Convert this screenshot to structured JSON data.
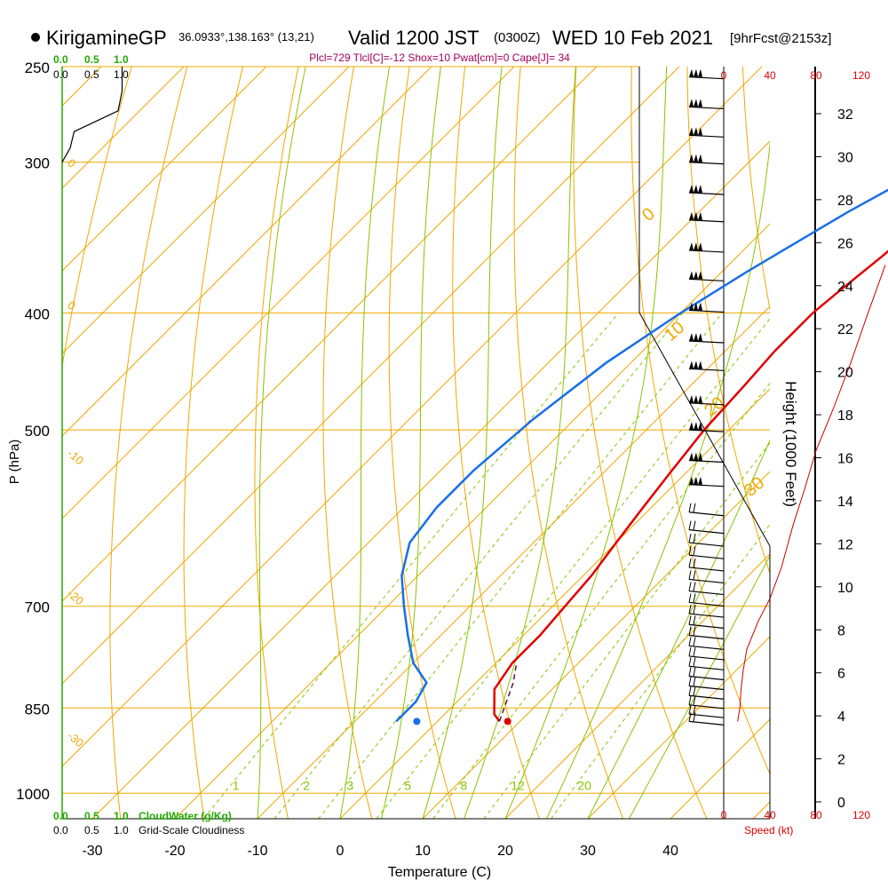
{
  "header": {
    "station": "KirigamineGP",
    "coords": "36.0933°,138.163° (13,21)",
    "valid": "Valid 1200 JST",
    "utc": "(0300Z)",
    "date": "WED 10 Feb 2021",
    "forecast": "[9hrFcst@2153z]",
    "indices": "Plcl=729 Tlcl[C]=-12 Shox=10 Pwat[cm]=0 Cape[J]= 34"
  },
  "colors": {
    "temperature": "#e00000",
    "dewpoint": "#1a6fe8",
    "isotherm": "#f0a800",
    "dry_adiabat": "#f0a800",
    "moist_adiabat": "#88c400",
    "mixing_ratio": "#88c400",
    "cloud": "#000000",
    "speed": "#cc0000",
    "cloudwater_label": "#22aa00"
  },
  "chart_data": {
    "type": "line",
    "title": "",
    "xlabel": "Temperature (C)",
    "ylabel": "P (hPa)",
    "y2label": "Height (1000 Feet)",
    "skewed": true,
    "pressure_axis": {
      "scale": "log",
      "range": [
        250,
        1050
      ],
      "ticks": [
        "250",
        "300",
        "400",
        "500",
        "700",
        "850",
        "1000"
      ]
    },
    "temperature_ticks": [
      "-30",
      "-20",
      "-10",
      "0",
      "10",
      "20",
      "30",
      "40"
    ],
    "height_ticks": [
      "0",
      "2",
      "4",
      "6",
      "8",
      "10",
      "12",
      "14",
      "16",
      "18",
      "20",
      "22",
      "24",
      "26",
      "28",
      "30",
      "32"
    ],
    "isotherm_labels": [
      "0",
      "10",
      "20",
      "30"
    ],
    "isotherm_left_labels": [
      "0",
      "0",
      "-10",
      "-20",
      "-30"
    ],
    "mixing_ratio_labels": [
      "1",
      "2",
      "3",
      "5",
      "8",
      "12",
      "20"
    ],
    "cloudwater_axis": {
      "label": "CloudWater (g/Kg)",
      "ticks": [
        "0.0",
        "0.5",
        "1.0"
      ]
    },
    "cloudiness_axis": {
      "label": "Grid-Scale Cloudiness",
      "ticks": [
        "0.0",
        "0.5",
        "1.0"
      ]
    },
    "speed_axis": {
      "label": "Speed (kt)",
      "ticks": [
        "0",
        "40",
        "80",
        "120"
      ]
    },
    "series": [
      {
        "key": "temperature",
        "points": [
          [
            -4.5,
            260
          ],
          [
            -2.5,
            285
          ],
          [
            -1.5,
            300
          ],
          [
            -1.5,
            330
          ],
          [
            -2.5,
            360
          ],
          [
            -3.5,
            385
          ],
          [
            -4,
            400
          ],
          [
            -4,
            430
          ],
          [
            -3.5,
            460
          ],
          [
            -3,
            500
          ],
          [
            -2,
            540
          ],
          [
            -1,
            580
          ],
          [
            0,
            620
          ],
          [
            1,
            660
          ],
          [
            1.5,
            700
          ],
          [
            2,
            740
          ],
          [
            2,
            780
          ],
          [
            3,
            820
          ],
          [
            6,
            860
          ],
          [
            7.5,
            872
          ]
        ]
      },
      {
        "key": "dewpoint",
        "points": [
          [
            -8,
            260
          ],
          [
            -6,
            290
          ],
          [
            -7,
            300
          ],
          [
            -12,
            330
          ],
          [
            -17,
            370
          ],
          [
            -20,
            400
          ],
          [
            -23,
            440
          ],
          [
            -25,
            490
          ],
          [
            -26,
            540
          ],
          [
            -26,
            580
          ],
          [
            -25,
            620
          ],
          [
            -22,
            660
          ],
          [
            -18,
            700
          ],
          [
            -14,
            740
          ],
          [
            -10,
            780
          ],
          [
            -6,
            810
          ],
          [
            -5,
            840
          ],
          [
            -5,
            860
          ],
          [
            -5,
            872
          ]
        ]
      },
      {
        "key": "parcel",
        "points": [
          [
            7.5,
            872
          ],
          [
            4.5,
            810
          ],
          [
            2.5,
            780
          ]
        ]
      },
      {
        "key": "cloudiness",
        "points": [
          [
            0,
            300
          ],
          [
            0.1,
            292
          ],
          [
            0.15,
            283
          ],
          [
            0.7,
            272
          ],
          [
            0.75,
            262
          ],
          [
            0.75,
            250
          ]
        ]
      }
    ],
    "surface_points": {
      "temperature": [
        8.5,
        872
      ],
      "dewpoint": [
        -2.5,
        872
      ]
    },
    "wind_profile": {
      "speed_kt": [
        [
          12,
          872
        ],
        [
          14,
          850
        ],
        [
          15,
          820
        ],
        [
          17,
          790
        ],
        [
          20,
          760
        ],
        [
          30,
          720
        ],
        [
          40,
          690
        ],
        [
          50,
          650
        ],
        [
          60,
          600
        ],
        [
          70,
          560
        ],
        [
          80,
          520
        ],
        [
          95,
          480
        ],
        [
          110,
          440
        ],
        [
          125,
          400
        ],
        [
          140,
          365
        ]
      ],
      "barb_levels_hPa": [
        255,
        270,
        285,
        300,
        318,
        335,
        355,
        375,
        398,
        422,
        445,
        475,
        500,
        530,
        555,
        585,
        605,
        620,
        635,
        650,
        665,
        680,
        695,
        710,
        725,
        740,
        755,
        770,
        785,
        800,
        815,
        830,
        845,
        860,
        872
      ]
    },
    "height_profile_kft": [
      [
        0,
        1050
      ],
      [
        40,
        700
      ],
      [
        40,
        600
      ],
      [
        20,
        400
      ],
      [
        -10,
        250
      ]
    ]
  }
}
